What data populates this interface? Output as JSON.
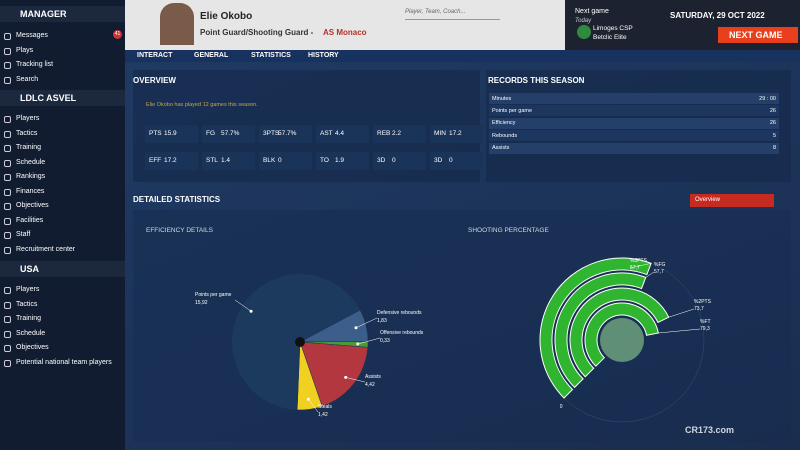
{
  "sidebar": {
    "message_badge": "41",
    "sections": [
      {
        "title": "MANAGER",
        "items": [
          "Messages",
          "Plays",
          "Tracking list",
          "Search"
        ]
      },
      {
        "title": "LDLC ASVEL",
        "items": [
          "Players",
          "Tactics",
          "Training",
          "Schedule",
          "Rankings",
          "Finances",
          "Objectives",
          "Facilities",
          "Staff",
          "Recruitment center"
        ]
      },
      {
        "title": "USA",
        "items": [
          "Players",
          "Tactics",
          "Training",
          "Schedule",
          "Objectives",
          "Potential national team players"
        ]
      }
    ]
  },
  "header": {
    "player_name": "Elie Okobo",
    "position": "Point Guard/Shooting Guard -",
    "team": "AS Monaco",
    "search_placeholder": "Player, Team, Coach...",
    "next_game_label": "Next game",
    "next_game_when": "Today",
    "opponent": "Limoges CSP",
    "league": "Betclic Elite",
    "date": "SATURDAY, 29 OCT 2022",
    "next_game_button": "NEXT GAME"
  },
  "menu": [
    "INTERACT",
    "GENERAL",
    "STATISTICS",
    "HISTORY"
  ],
  "overview": {
    "title": "OVERVIEW",
    "note": "Elie Okobo has played 12 games this season.",
    "stats": [
      [
        "PTS",
        "15.9"
      ],
      [
        "FG",
        "57.7%"
      ],
      [
        "3PTS",
        "57.7%"
      ],
      [
        "AST",
        "4.4"
      ],
      [
        "REB",
        "2.2"
      ],
      [
        "MIN",
        "17.2"
      ],
      [
        "EFF",
        "17.2"
      ],
      [
        "STL",
        "1.4"
      ],
      [
        "BLK",
        "0"
      ],
      [
        "TO",
        "1.9"
      ],
      [
        "3D",
        "0"
      ],
      [
        "3D",
        "0"
      ]
    ]
  },
  "records": {
    "title": "RECORDS THIS SEASON",
    "rows": [
      [
        "Minutes",
        "29 : 00"
      ],
      [
        "Points per game",
        "26"
      ],
      [
        "Efficiency",
        "26"
      ],
      [
        "Rebounds",
        "5"
      ],
      [
        "Assists",
        "8"
      ]
    ]
  },
  "detailed": {
    "title": "DETAILED STATISTICS",
    "dropdown": "Overview",
    "efficiency": {
      "title": "EFFICIENCY DETAILS",
      "categories": [
        "Defensive rebounds",
        "Offensive rebounds",
        "Assists",
        "Steals",
        "Points per game"
      ],
      "values": [
        1.83,
        0.33,
        4.42,
        1.42,
        15.92
      ],
      "value_labels": [
        "1,83",
        "0,33",
        "4,42",
        "1,42",
        "15,92"
      ],
      "colors": [
        "#3b5f8a",
        "#4a9a3a",
        "#b3373f",
        "#f0d020",
        "#1c3a5e"
      ]
    },
    "shooting": {
      "title": "SHOOTING PERCENTAGE",
      "categories": [
        "%3PTS",
        "%FG",
        "%2PTS",
        "%FT"
      ],
      "values": [
        57.7,
        57.7,
        73.7,
        79.3
      ],
      "value_labels": [
        "57,7",
        "57,7",
        "73,7",
        "79,3"
      ],
      "color": "#2fb52f",
      "rlim": [
        0,
        100
      ],
      "rticks": [
        0
      ]
    }
  },
  "watermark": "CR173.com"
}
